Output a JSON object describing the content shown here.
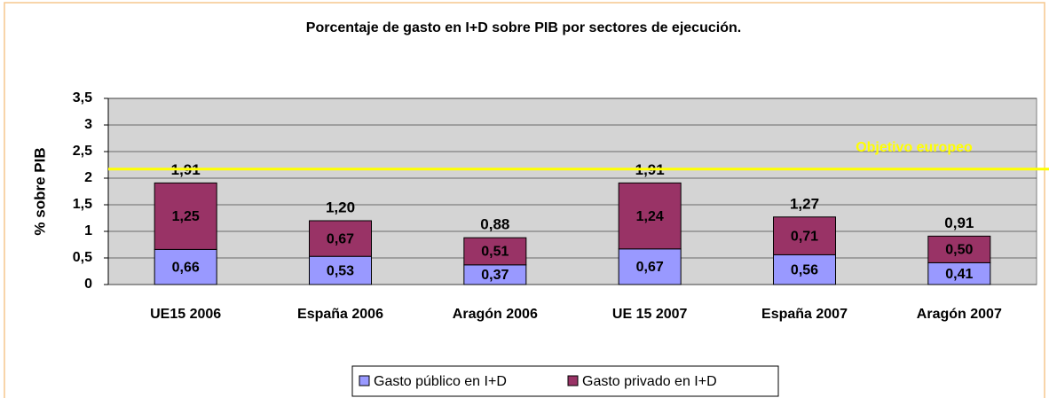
{
  "chart_data": {
    "type": "stacked_bar",
    "title": "Porcentaje de gasto en I+D sobre PIB por sectores de ejecución.",
    "y_label": "% sobre PIB",
    "categories": [
      "UE15 2006",
      "España 2006",
      "Aragón 2006",
      "UE 15 2007",
      "España 2007",
      "Aragón 2007"
    ],
    "series": [
      {
        "name": "Gasto público en I+D",
        "color": "#9999ff",
        "values": [
          0.66,
          0.53,
          0.37,
          0.67,
          0.56,
          0.41
        ],
        "value_labels": [
          "0,66",
          "0,53",
          "0,37",
          "0,67",
          "0,56",
          "0,41"
        ]
      },
      {
        "name": "Gasto privado en I+D",
        "color": "#993366",
        "values": [
          1.25,
          0.67,
          0.51,
          1.24,
          0.71,
          0.5
        ],
        "value_labels": [
          "1,25",
          "0,67",
          "0,51",
          "1,24",
          "0,71",
          "0,50"
        ]
      }
    ],
    "totals": {
      "values": [
        1.91,
        1.2,
        0.88,
        1.91,
        1.27,
        0.91
      ],
      "value_labels": [
        "1,91",
        "1,20",
        "0,88",
        "1,91",
        "1,27",
        "0,91"
      ]
    },
    "reference_line": {
      "label": "Objetivo europeo",
      "value": 2.17,
      "color": "#ffff00"
    },
    "ylim": [
      0,
      3.5
    ],
    "yticks": [
      0,
      {
        "value": 0.5,
        "label": "0,5"
      },
      1,
      {
        "value": 1.5,
        "label": "1,5"
      },
      2,
      {
        "value": 2.5,
        "label": "2,5"
      },
      3,
      {
        "value": 3.5,
        "label": "3,5"
      }
    ],
    "grid": true,
    "legend": "bottom"
  }
}
